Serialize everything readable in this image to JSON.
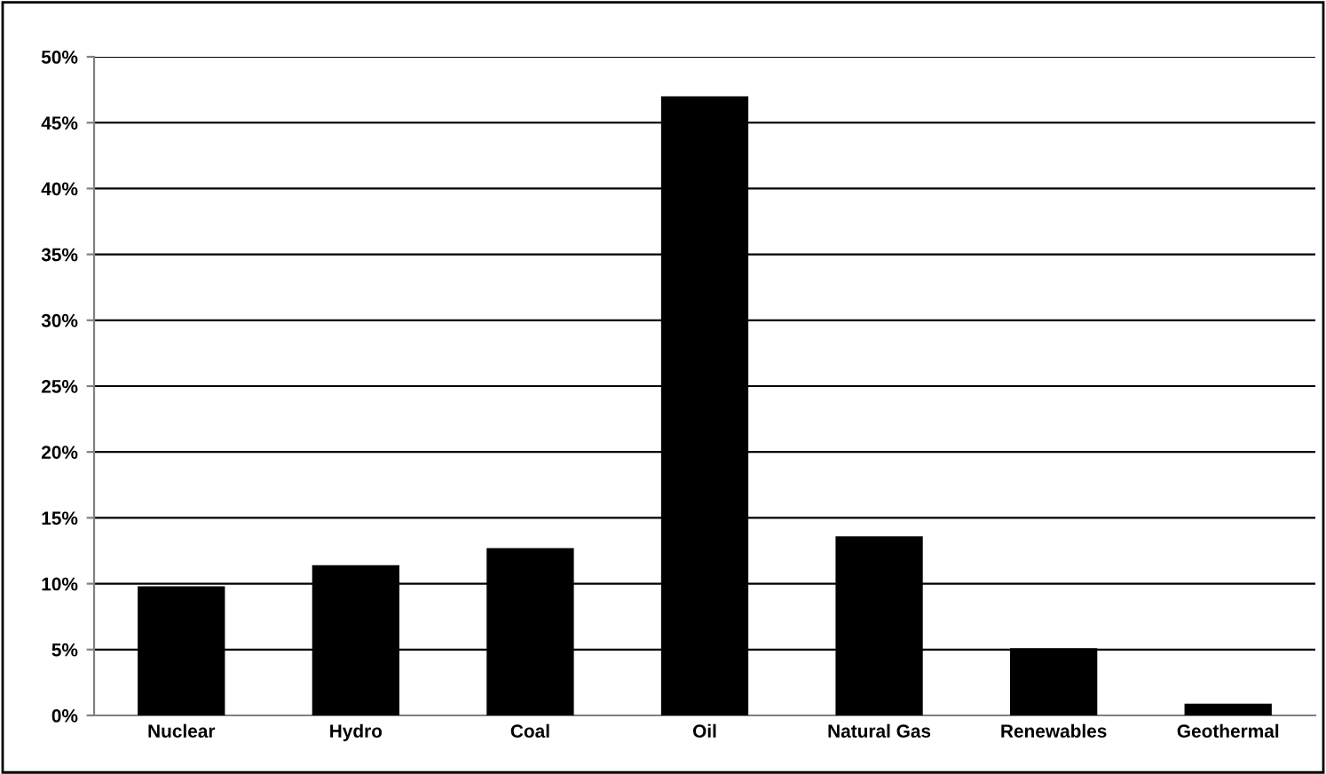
{
  "chart_data": {
    "type": "bar",
    "categories": [
      "Nuclear",
      "Hydro",
      "Coal",
      "Oil",
      "Natural Gas",
      "Renewables",
      "Geothermal"
    ],
    "values": [
      9.8,
      11.4,
      12.7,
      47.0,
      13.6,
      5.1,
      0.9
    ],
    "color": "#000000",
    "ylim": [
      0,
      50
    ],
    "yticks": [
      {
        "value": 0,
        "label": "0%"
      },
      {
        "value": 5,
        "label": "5%"
      },
      {
        "value": 10,
        "label": "10%"
      },
      {
        "value": 15,
        "label": "15%"
      },
      {
        "value": 20,
        "label": "20%"
      },
      {
        "value": 25,
        "label": "25%"
      },
      {
        "value": 30,
        "label": "30%"
      },
      {
        "value": 35,
        "label": "35%"
      },
      {
        "value": 40,
        "label": "40%"
      },
      {
        "value": 45,
        "label": "45%"
      },
      {
        "value": 50,
        "label": "50%"
      }
    ],
    "grid": "y",
    "legend": false
  }
}
